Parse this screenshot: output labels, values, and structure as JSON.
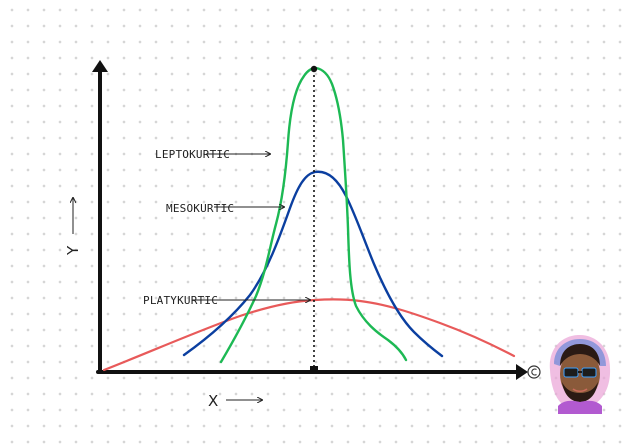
{
  "labels": {
    "leptokurtic": "LEPTOKURTIC",
    "mesokurtic": "MESOKURTIC",
    "platykurtic": "PLATYKURTIC",
    "x_axis": "X",
    "y_axis": "Y"
  },
  "colors": {
    "axis": "#111111",
    "leptokurtic": "#1db954",
    "mesokurtic": "#0b3fa0",
    "platykurtic": "#e85a5a",
    "dotted_line": "#111111"
  },
  "icons": {
    "end_marker": "copyright-circle-icon",
    "avatar": "author-avatar"
  }
}
